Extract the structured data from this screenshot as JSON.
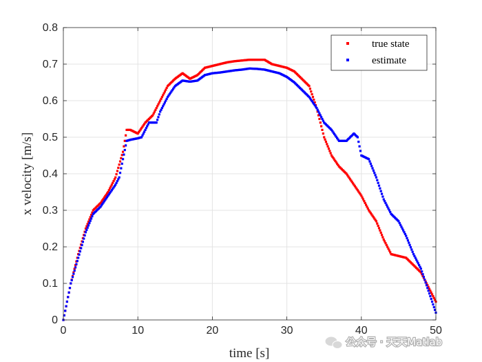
{
  "chart_data": {
    "type": "scatter",
    "title": "",
    "xlabel": "time [s]",
    "ylabel": "x velocity [m/s]",
    "xlim": [
      0,
      50
    ],
    "ylim": [
      0,
      0.8
    ],
    "xticks": [
      "0",
      "10",
      "20",
      "30",
      "40",
      "50"
    ],
    "yticks": [
      "0",
      "0.1",
      "0.2",
      "0.3",
      "0.4",
      "0.5",
      "0.6",
      "0.7",
      "0.8"
    ],
    "grid": true,
    "legend_position": "top-right",
    "series": [
      {
        "name": "true state",
        "color": "#ff0000",
        "x": [
          0,
          1,
          2,
          3,
          4,
          5,
          6,
          7,
          8,
          8.5,
          9,
          10,
          11,
          12,
          13,
          14,
          15,
          16,
          17,
          18,
          19,
          20,
          21,
          22,
          23,
          24,
          25,
          26,
          27,
          28,
          29,
          30,
          31,
          32,
          33,
          34,
          35,
          36,
          37,
          38,
          39,
          40,
          41,
          42,
          43,
          44,
          45,
          46,
          47,
          48,
          49,
          50
        ],
        "y": [
          0,
          0.1,
          0.18,
          0.25,
          0.3,
          0.32,
          0.35,
          0.39,
          0.46,
          0.52,
          0.52,
          0.51,
          0.54,
          0.56,
          0.6,
          0.64,
          0.66,
          0.675,
          0.66,
          0.67,
          0.69,
          0.695,
          0.7,
          0.705,
          0.708,
          0.71,
          0.712,
          0.712,
          0.712,
          0.7,
          0.695,
          0.69,
          0.68,
          0.66,
          0.64,
          0.58,
          0.5,
          0.45,
          0.42,
          0.4,
          0.37,
          0.34,
          0.3,
          0.27,
          0.22,
          0.18,
          0.175,
          0.17,
          0.15,
          0.13,
          0.09,
          0.05
        ]
      },
      {
        "name": "estimate",
        "color": "#0000ff",
        "x": [
          0,
          1,
          2,
          3,
          4,
          5,
          6,
          7,
          7.5,
          8.5,
          9,
          10,
          10.5,
          11.5,
          12.5,
          13,
          14,
          15,
          16,
          17,
          18,
          19,
          20,
          21,
          22,
          23,
          24,
          25,
          26,
          27,
          28,
          29,
          30,
          31,
          32,
          33,
          34,
          35,
          36,
          37,
          38,
          39,
          39.5,
          40,
          41,
          42,
          43,
          44,
          45,
          46,
          47,
          48,
          49,
          50
        ],
        "y": [
          0,
          0.1,
          0.17,
          0.24,
          0.29,
          0.31,
          0.34,
          0.37,
          0.39,
          0.49,
          0.493,
          0.497,
          0.5,
          0.54,
          0.54,
          0.57,
          0.61,
          0.64,
          0.655,
          0.652,
          0.655,
          0.67,
          0.675,
          0.677,
          0.68,
          0.683,
          0.685,
          0.688,
          0.687,
          0.685,
          0.68,
          0.675,
          0.665,
          0.65,
          0.63,
          0.61,
          0.58,
          0.54,
          0.52,
          0.49,
          0.49,
          0.51,
          0.5,
          0.45,
          0.44,
          0.39,
          0.33,
          0.29,
          0.27,
          0.23,
          0.18,
          0.14,
          0.08,
          0.02
        ]
      }
    ]
  },
  "watermark": {
    "text": "公众号 · 天天Matlab",
    "icon": "wechat-logo-icon"
  }
}
